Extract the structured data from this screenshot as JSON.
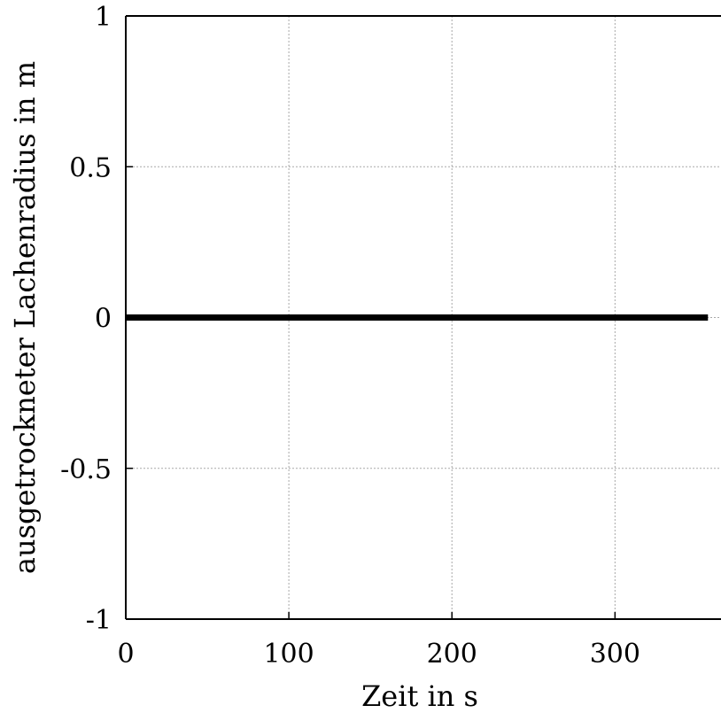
{
  "chart_data": {
    "type": "line",
    "xlabel": "Zeit in s",
    "ylabel": "ausgetrockneter Lachenradius in m",
    "xlim": [
      0,
      365
    ],
    "ylim": [
      -1,
      1
    ],
    "xticks": [
      0,
      100,
      200,
      300
    ],
    "xtick_labels": [
      "0",
      "100",
      "200",
      "300"
    ],
    "yticks": [
      1,
      0.5,
      0,
      -0.5,
      -1
    ],
    "ytick_labels": [
      "1",
      "0.5",
      "0",
      "-0.5",
      "-1"
    ],
    "grid": true,
    "series": [
      {
        "x": [
          0,
          357
        ],
        "y": [
          0,
          0
        ],
        "color": "#000000"
      }
    ]
  }
}
